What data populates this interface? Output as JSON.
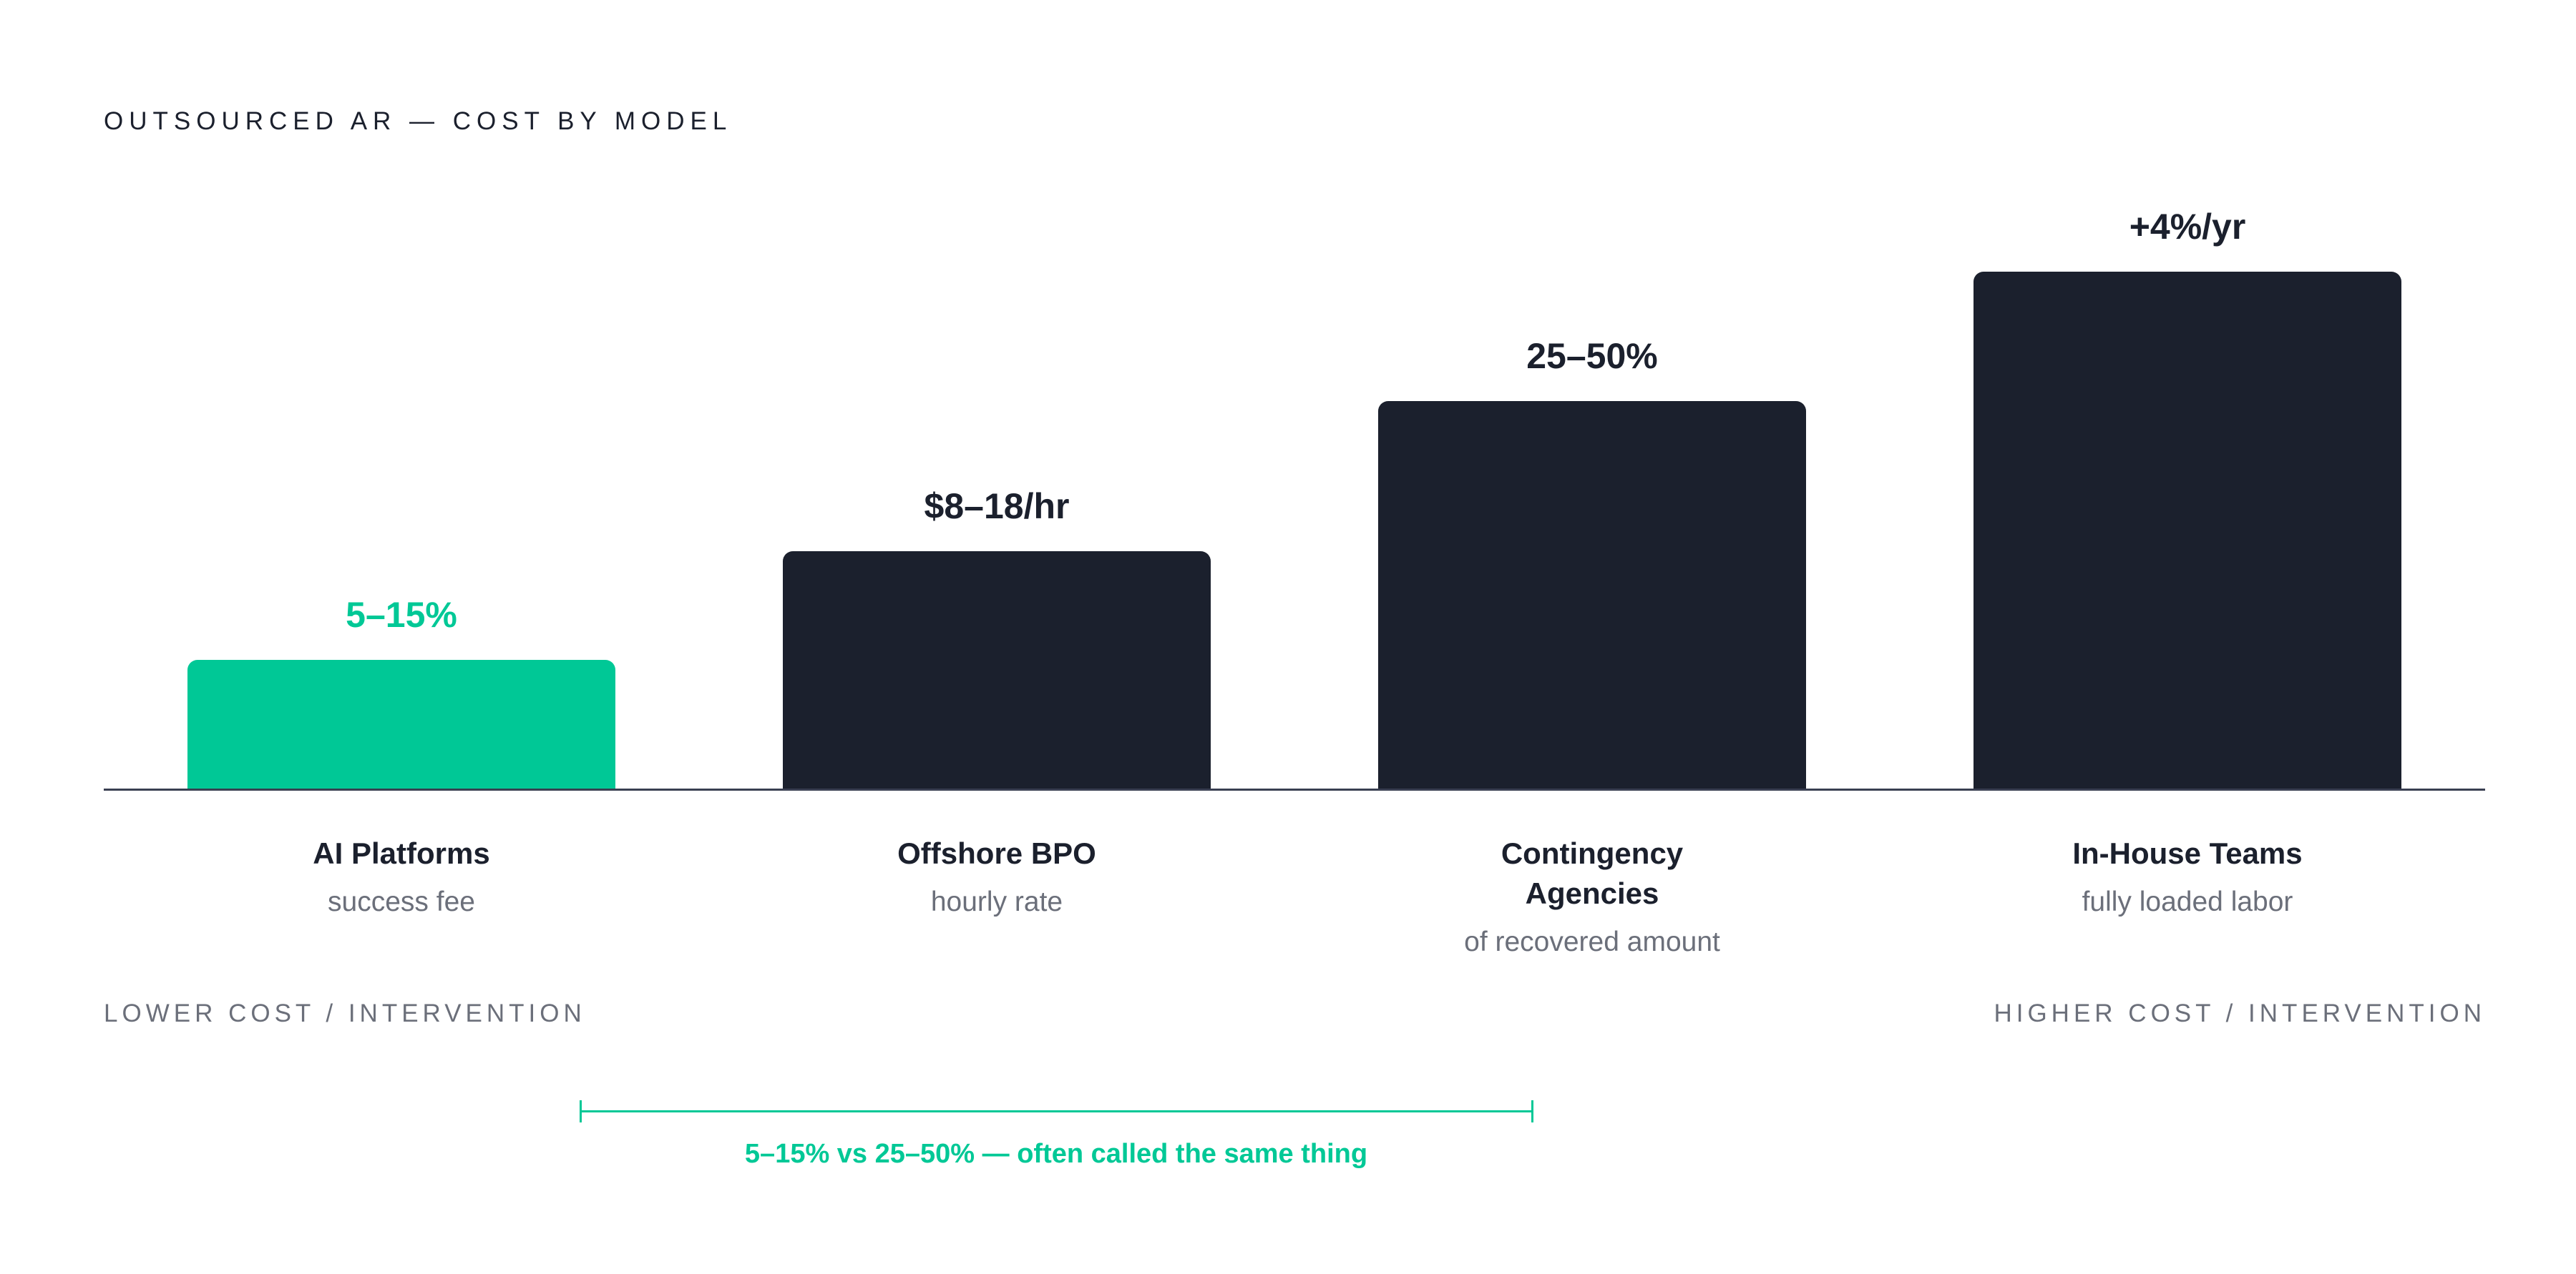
{
  "chart_data": {
    "type": "bar",
    "title": "OUTSOURCED AR — COST BY MODEL",
    "categories": [
      "AI Platforms",
      "Offshore BPO",
      "Contingency Agencies",
      "In-House Teams"
    ],
    "subtitles": [
      "success fee",
      "hourly rate",
      "of recovered amount",
      "fully loaded labor"
    ],
    "value_labels": [
      "5–15%",
      "$8–18/hr",
      "25–50%",
      "+4%/yr"
    ],
    "relative_heights": [
      0.25,
      0.46,
      0.75,
      1.0
    ],
    "bar_colors": [
      "#00c896",
      "#1b202d",
      "#1b202d",
      "#1b202d"
    ],
    "label_colors": [
      "#00c896",
      "#1b202d",
      "#1b202d",
      "#1b202d"
    ],
    "highlight_index": 0,
    "axis_left_label": "LOWER COST / INTERVENTION",
    "axis_right_label": "HIGHER COST / INTERVENTION",
    "bracket_label": "5–15% vs 25–50% — often called the same thing",
    "bracket_color": "#00c896",
    "grid": false,
    "legend": "none"
  }
}
